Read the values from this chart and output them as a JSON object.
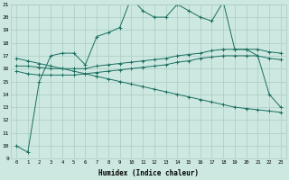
{
  "xlabel": "Humidex (Indice chaleur)",
  "background_color": "#cce8e0",
  "grid_color": "#aaccC4",
  "line_color": "#1a6e60",
  "xmin": -0.5,
  "xmax": 23.5,
  "ymin": 9,
  "ymax": 21,
  "yticks": [
    9,
    10,
    11,
    12,
    13,
    14,
    15,
    16,
    17,
    18,
    19,
    20,
    21
  ],
  "xticks": [
    0,
    1,
    2,
    3,
    4,
    5,
    6,
    7,
    8,
    9,
    10,
    11,
    12,
    13,
    14,
    15,
    16,
    17,
    18,
    19,
    20,
    21,
    22,
    23
  ],
  "line1_x": [
    0,
    1,
    2,
    3,
    4,
    5,
    6,
    7,
    8,
    9,
    10,
    11,
    12,
    13,
    14,
    15,
    16,
    17,
    18,
    19,
    20,
    21,
    22,
    23
  ],
  "line1_y": [
    10,
    9.5,
    15,
    17,
    17.2,
    17.2,
    16.3,
    18.5,
    18.8,
    19.2,
    21.5,
    20.5,
    20.0,
    20.0,
    21.0,
    20.5,
    20.0,
    19.7,
    21.2,
    17.5,
    17.5,
    17.0,
    14.0,
    13.0
  ],
  "line2_x": [
    0,
    1,
    2,
    3,
    4,
    5,
    6,
    7,
    8,
    9,
    10,
    11,
    12,
    13,
    14,
    15,
    16,
    17,
    18,
    19,
    20,
    21,
    22,
    23
  ],
  "line2_y": [
    16.2,
    16.2,
    16.1,
    16.0,
    16.0,
    16.0,
    16.0,
    16.2,
    16.3,
    16.4,
    16.5,
    16.6,
    16.7,
    16.8,
    17.0,
    17.1,
    17.2,
    17.4,
    17.5,
    17.5,
    17.5,
    17.5,
    17.3,
    17.2
  ],
  "line3_x": [
    0,
    1,
    2,
    3,
    4,
    5,
    6,
    7,
    8,
    9,
    10,
    11,
    12,
    13,
    14,
    15,
    16,
    17,
    18,
    19,
    20,
    21,
    22,
    23
  ],
  "line3_y": [
    15.8,
    15.6,
    15.5,
    15.5,
    15.5,
    15.5,
    15.6,
    15.7,
    15.8,
    15.9,
    16.0,
    16.1,
    16.2,
    16.3,
    16.5,
    16.6,
    16.8,
    16.9,
    17.0,
    17.0,
    17.0,
    17.0,
    16.8,
    16.7
  ],
  "line4_x": [
    0,
    1,
    2,
    3,
    4,
    5,
    6,
    7,
    8,
    9,
    10,
    11,
    12,
    13,
    14,
    15,
    16,
    17,
    18,
    19,
    20,
    21,
    22,
    23
  ],
  "line4_y": [
    16.8,
    16.6,
    16.4,
    16.2,
    16.0,
    15.8,
    15.6,
    15.4,
    15.2,
    15.0,
    14.8,
    14.6,
    14.4,
    14.2,
    14.0,
    13.8,
    13.6,
    13.4,
    13.2,
    13.0,
    12.9,
    12.8,
    12.7,
    12.6
  ]
}
